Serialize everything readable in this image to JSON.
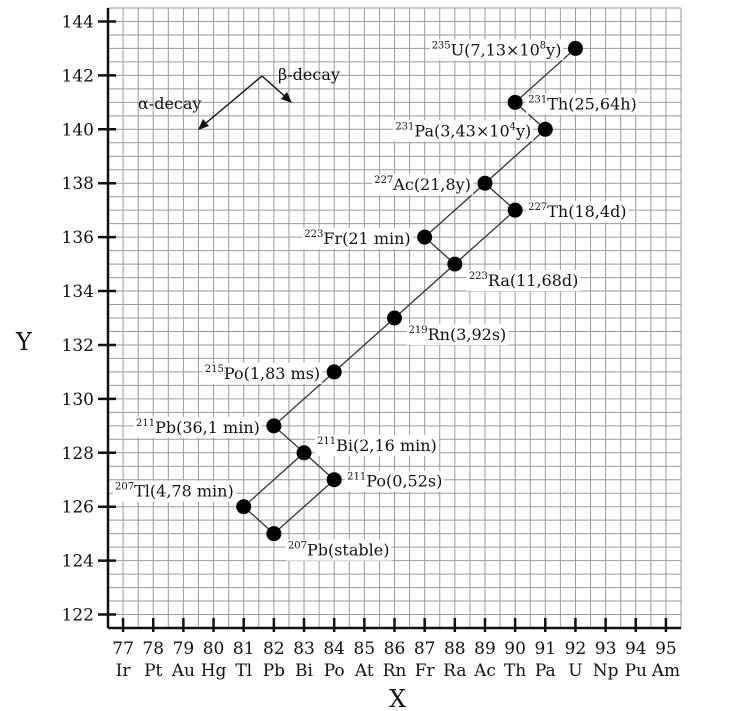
{
  "chart_data": {
    "type": "scatter",
    "title": "",
    "xlabel": "X",
    "ylabel": "Y",
    "xlim": [
      76.5,
      95.5
    ],
    "ylim": [
      121.5,
      144.5
    ],
    "grid": true,
    "x_ticks": [
      {
        "value": 77,
        "label": "77",
        "element": "Ir"
      },
      {
        "value": 78,
        "label": "78",
        "element": "Pt"
      },
      {
        "value": 79,
        "label": "79",
        "element": "Au"
      },
      {
        "value": 80,
        "label": "80",
        "element": "Hg"
      },
      {
        "value": 81,
        "label": "81",
        "element": "Tl"
      },
      {
        "value": 82,
        "label": "82",
        "element": "Pb"
      },
      {
        "value": 83,
        "label": "83",
        "element": "Bi"
      },
      {
        "value": 84,
        "label": "84",
        "element": "Po"
      },
      {
        "value": 85,
        "label": "85",
        "element": "At"
      },
      {
        "value": 86,
        "label": "86",
        "element": "Rn"
      },
      {
        "value": 87,
        "label": "87",
        "element": "Fr"
      },
      {
        "value": 88,
        "label": "88",
        "element": "Ra"
      },
      {
        "value": 89,
        "label": "89",
        "element": "Ac"
      },
      {
        "value": 90,
        "label": "90",
        "element": "Th"
      },
      {
        "value": 91,
        "label": "91",
        "element": "Pa"
      },
      {
        "value": 92,
        "label": "92",
        "element": "U"
      },
      {
        "value": 93,
        "label": "93",
        "element": "Np"
      },
      {
        "value": 94,
        "label": "94",
        "element": "Pu"
      },
      {
        "value": 95,
        "label": "95",
        "element": "Am"
      }
    ],
    "y_ticks": [
      122,
      124,
      126,
      128,
      130,
      132,
      134,
      136,
      138,
      140,
      142,
      144
    ],
    "points": [
      {
        "id": "u235",
        "x": 92,
        "y": 143,
        "mass": "235",
        "sym": "U",
        "info": "(7,13×10",
        "exp": "8",
        "tail": "y)",
        "side": "left"
      },
      {
        "id": "th231",
        "x": 90,
        "y": 141,
        "mass": "231",
        "sym": "Th",
        "info": "(25,64h)",
        "exp": "",
        "tail": "",
        "side": "right"
      },
      {
        "id": "pa231",
        "x": 91,
        "y": 140,
        "mass": "231",
        "sym": "Pa",
        "info": "(3,43×10",
        "exp": "4",
        "tail": "y)",
        "side": "left"
      },
      {
        "id": "ac227",
        "x": 89,
        "y": 138,
        "mass": "227",
        "sym": "Ac",
        "info": "(21,8y)",
        "exp": "",
        "tail": "",
        "side": "left"
      },
      {
        "id": "th227",
        "x": 90,
        "y": 137,
        "mass": "227",
        "sym": "Th",
        "info": "(18,4d)",
        "exp": "",
        "tail": "",
        "side": "right"
      },
      {
        "id": "fr223",
        "x": 87,
        "y": 136,
        "mass": "223",
        "sym": "Fr",
        "info": "(21 min)",
        "exp": "",
        "tail": "",
        "side": "left"
      },
      {
        "id": "ra223",
        "x": 88,
        "y": 135,
        "mass": "223",
        "sym": "Ra",
        "info": "(11,68d)",
        "exp": "",
        "tail": "",
        "side": "below-right"
      },
      {
        "id": "rn219",
        "x": 86,
        "y": 133,
        "mass": "219",
        "sym": "Rn",
        "info": "(3,92s)",
        "exp": "",
        "tail": "",
        "side": "below-right"
      },
      {
        "id": "po215",
        "x": 84,
        "y": 131,
        "mass": "215",
        "sym": "Po",
        "info": "(1,83 ms)",
        "exp": "",
        "tail": "",
        "side": "left"
      },
      {
        "id": "pb211",
        "x": 82,
        "y": 129,
        "mass": "211",
        "sym": "Pb",
        "info": "(36,1 min)",
        "exp": "",
        "tail": "",
        "side": "left"
      },
      {
        "id": "bi211",
        "x": 83,
        "y": 128,
        "mass": "211",
        "sym": "Bi",
        "info": "(2,16 min)",
        "exp": "",
        "tail": "",
        "side": "above-right"
      },
      {
        "id": "po211",
        "x": 84,
        "y": 127,
        "mass": "211",
        "sym": "Po",
        "info": "(0,52s)",
        "exp": "",
        "tail": "",
        "side": "right"
      },
      {
        "id": "tl207",
        "x": 81,
        "y": 126,
        "mass": "207",
        "sym": "Tl",
        "info": "(4,78 min)",
        "exp": "",
        "tail": "",
        "side": "above-left"
      },
      {
        "id": "pb207",
        "x": 82,
        "y": 125,
        "mass": "207",
        "sym": "Pb",
        "info": "(stable)",
        "exp": "",
        "tail": "",
        "side": "below-right"
      }
    ],
    "links": [
      [
        "u235",
        "th231"
      ],
      [
        "th231",
        "pa231"
      ],
      [
        "pa231",
        "ac227"
      ],
      [
        "ac227",
        "fr223"
      ],
      [
        "ac227",
        "th227"
      ],
      [
        "fr223",
        "ra223"
      ],
      [
        "th227",
        "ra223"
      ],
      [
        "ra223",
        "rn219"
      ],
      [
        "rn219",
        "po215"
      ],
      [
        "po215",
        "pb211"
      ],
      [
        "pb211",
        "bi211"
      ],
      [
        "bi211",
        "tl207"
      ],
      [
        "bi211",
        "po211"
      ],
      [
        "tl207",
        "pb207"
      ],
      [
        "po211",
        "pb207"
      ]
    ],
    "legend": {
      "alpha_label": "α-decay",
      "beta_label": "β-decay",
      "placement": "top-left"
    }
  },
  "colors": {
    "grid": "#9a9a9a",
    "axis": "#111111",
    "point": "#000000",
    "line": "#333333"
  }
}
